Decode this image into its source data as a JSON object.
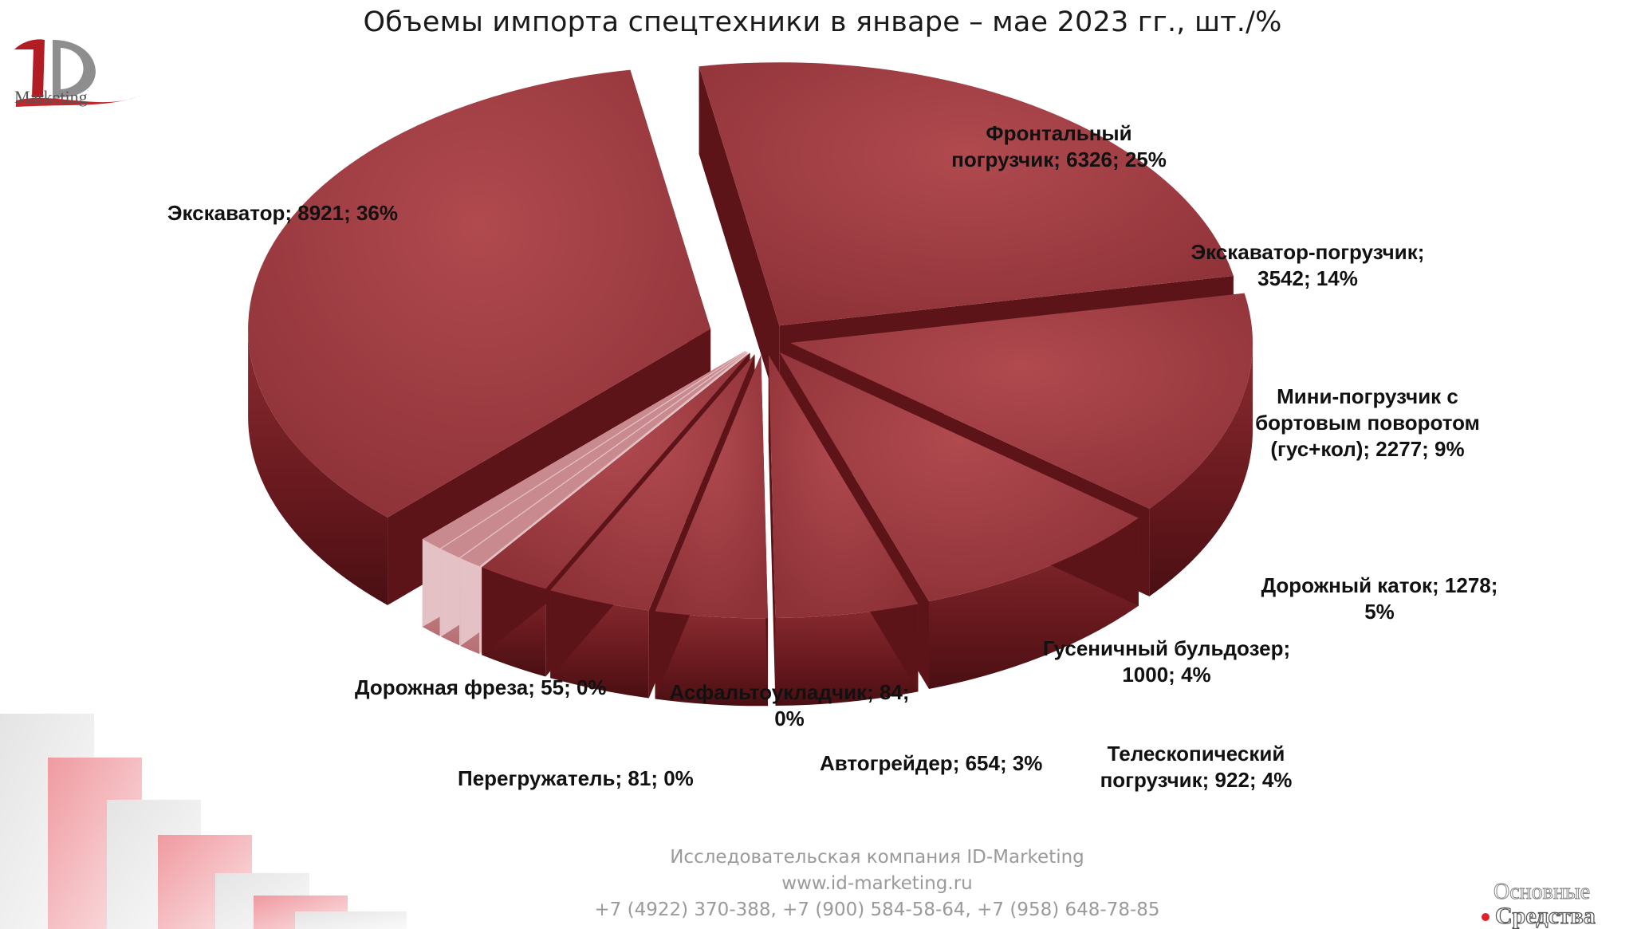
{
  "title": "Объемы импорта спецтехники в январе – мае 2023 гг., шт./%",
  "logo": {
    "text": "Marketing",
    "icon": "id-marketing-logo"
  },
  "brand_mark": {
    "line1": "Основные",
    "line2": "Средства"
  },
  "footer": {
    "company": "Исследовательская компания ID-Marketing",
    "site": "www.id-marketing.ru",
    "phones": "+7 (4922) 370-388, +7 (900) 584-58-64, +7 (958) 648-78-85"
  },
  "colors": {
    "slice_top": "#9a3a3e",
    "slice_side": "#6a1e22",
    "small_top": "#c98a8f",
    "accent": "#e0202a"
  },
  "chart_data": {
    "type": "pie",
    "title": "Объемы импорта спецтехники в январе – мае 2023 гг., шт./%",
    "slices": [
      {
        "name": "Фронтальный погрузчик",
        "value": 6326,
        "percent": 25,
        "label": "Фронтальный\nпогрузчик; 6326; 25%"
      },
      {
        "name": "Экскаватор-погрузчик",
        "value": 3542,
        "percent": 14,
        "label": "Экскаватор-погрузчик;\n3542; 14%"
      },
      {
        "name": "Мини-погрузчик с бортовым поворотом (гус+кол)",
        "value": 2277,
        "percent": 9,
        "label": "Мини-погрузчик с\nбортовым поворотом\n(гус+кол); 2277; 9%"
      },
      {
        "name": "Дорожный каток",
        "value": 1278,
        "percent": 5,
        "label": "Дорожный каток; 1278;\n5%"
      },
      {
        "name": "Гусеничный бульдозер",
        "value": 1000,
        "percent": 4,
        "label": "Гусеничный бульдозер;\n1000; 4%"
      },
      {
        "name": "Телескопический погрузчик",
        "value": 922,
        "percent": 4,
        "label": "Телескопический\nпогрузчик; 922; 4%"
      },
      {
        "name": "Автогрейдер",
        "value": 654,
        "percent": 3,
        "label": "Автогрейдер; 654; 3%"
      },
      {
        "name": "Асфальтоукладчик",
        "value": 84,
        "percent": 0,
        "label": "Асфальтоукладчик; 84;\n0%"
      },
      {
        "name": "Перегружатель",
        "value": 81,
        "percent": 0,
        "label": "Перегружатель; 81; 0%"
      },
      {
        "name": "Дорожная фреза",
        "value": 55,
        "percent": 0,
        "label": "Дорожная фреза; 55; 0%"
      },
      {
        "name": "Экскаватор",
        "value": 8921,
        "percent": 36,
        "label": "Экскаватор; 8921; 36%"
      }
    ]
  }
}
